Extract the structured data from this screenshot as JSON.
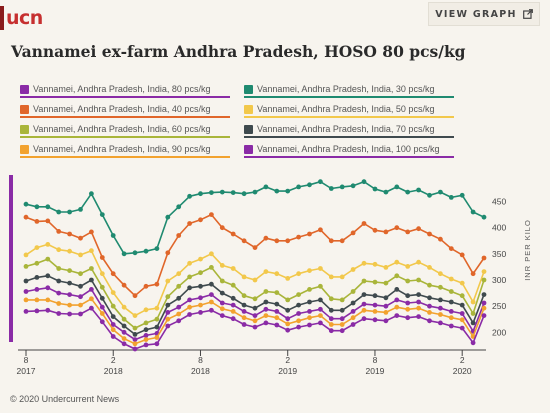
{
  "header": {
    "logo_text": "ucn",
    "view_graph_label": "VIEW GRAPH",
    "view_graph_icon": "external-link-icon"
  },
  "title": "Vannamei ex-farm Andhra Pradesh, HOSO 80 pcs/kg",
  "legend": [
    {
      "label": "Vannamei, Andhra Pradesh, India, 80 pcs/kg",
      "color": "#8a2ba6"
    },
    {
      "label": "Vannamei, Andhra Pradesh, India, 30 pcs/kg",
      "color": "#1f8a70"
    },
    {
      "label": "Vannamei, Andhra Pradesh, India, 40 pcs/kg",
      "color": "#e0662a"
    },
    {
      "label": "Vannamei, Andhra Pradesh, India, 50 pcs/kg",
      "color": "#f2c84b"
    },
    {
      "label": "Vannamei, Andhra Pradesh, India, 60 pcs/kg",
      "color": "#a9b53a"
    },
    {
      "label": "Vannamei, Andhra Pradesh, India, 70 pcs/kg",
      "color": "#3f4a4e"
    },
    {
      "label": "Vannamei, Andhra Pradesh, India, 90 pcs/kg",
      "color": "#f2a22e"
    },
    {
      "label": "Vannamei, Andhra Pradesh, India, 100 pcs/kg",
      "color": "#8a2ba6"
    }
  ],
  "chart_data": {
    "type": "line",
    "title": "Vannamei ex-farm Andhra Pradesh, HOSO 80 pcs/kg",
    "ylabel": "INR PER KILO",
    "ylim": [
      170,
      495
    ],
    "yticks": [
      200,
      250,
      300,
      350,
      400,
      450
    ],
    "y_axis_side": "right",
    "x_ticks": [
      {
        "index": 0,
        "month": "8",
        "year": "2017"
      },
      {
        "index": 8,
        "month": "2",
        "year": "2018"
      },
      {
        "index": 16,
        "month": "8",
        "year": "2018"
      },
      {
        "index": 24,
        "month": "2",
        "year": "2019"
      },
      {
        "index": 32,
        "month": "8",
        "year": "2019"
      },
      {
        "index": 40,
        "month": "2",
        "year": "2020"
      }
    ],
    "grid": false,
    "series": [
      {
        "name": "Vannamei, Andhra Pradesh, India, 30 pcs/kg",
        "color": "#1f8a70",
        "values": [
          445,
          440,
          440,
          430,
          430,
          435,
          465,
          425,
          385,
          350,
          352,
          355,
          360,
          420,
          440,
          460,
          465,
          467,
          468,
          467,
          465,
          468,
          478,
          470,
          470,
          478,
          482,
          488,
          475,
          478,
          480,
          488,
          474,
          468,
          478,
          468,
          472,
          462,
          468,
          458,
          462,
          430,
          420
        ]
      },
      {
        "name": "Vannamei, Andhra Pradesh, India, 40 pcs/kg",
        "color": "#e0662a",
        "values": [
          420,
          412,
          413,
          393,
          388,
          380,
          392,
          343,
          312,
          290,
          270,
          288,
          292,
          352,
          385,
          408,
          415,
          425,
          400,
          388,
          375,
          362,
          380,
          375,
          375,
          382,
          388,
          396,
          375,
          375,
          390,
          408,
          395,
          392,
          400,
          392,
          398,
          388,
          378,
          360,
          348,
          312,
          342
        ]
      },
      {
        "name": "Vannamei, Andhra Pradesh, India, 50 pcs/kg",
        "color": "#f2c84b",
        "values": [
          348,
          362,
          368,
          358,
          355,
          348,
          356,
          312,
          276,
          248,
          232,
          243,
          246,
          298,
          312,
          332,
          340,
          350,
          328,
          322,
          306,
          300,
          316,
          312,
          303,
          312,
          318,
          322,
          306,
          306,
          320,
          332,
          330,
          324,
          334,
          326,
          334,
          324,
          312,
          302,
          294,
          258,
          316
        ]
      },
      {
        "name": "Vannamei, Andhra Pradesh, India, 60 pcs/kg",
        "color": "#a9b53a",
        "values": [
          326,
          332,
          340,
          322,
          318,
          312,
          322,
          286,
          250,
          225,
          208,
          218,
          225,
          268,
          288,
          306,
          314,
          324,
          298,
          290,
          270,
          264,
          278,
          276,
          262,
          272,
          282,
          288,
          264,
          262,
          278,
          298,
          296,
          294,
          308,
          298,
          300,
          290,
          286,
          278,
          270,
          236,
          300
        ]
      },
      {
        "name": "Vannamei, Andhra Pradesh, India, 70 pcs/kg",
        "color": "#3f4a4e",
        "values": [
          298,
          305,
          308,
          298,
          294,
          288,
          300,
          265,
          230,
          212,
          196,
          205,
          210,
          252,
          265,
          285,
          288,
          292,
          275,
          265,
          252,
          246,
          258,
          254,
          242,
          252,
          258,
          262,
          242,
          242,
          256,
          272,
          270,
          266,
          282,
          270,
          272,
          266,
          262,
          258,
          252,
          218,
          272
        ]
      },
      {
        "name": "Vannamei, Andhra Pradesh, India, 80 pcs/kg",
        "color": "#8a2ba6",
        "values": [
          278,
          282,
          285,
          275,
          272,
          268,
          282,
          248,
          215,
          200,
          186,
          194,
          198,
          238,
          248,
          262,
          266,
          272,
          256,
          252,
          240,
          232,
          244,
          240,
          226,
          236,
          240,
          244,
          226,
          226,
          240,
          254,
          252,
          250,
          262,
          256,
          258,
          250,
          246,
          240,
          236,
          202,
          256
        ]
      },
      {
        "name": "Vannamei, Andhra Pradesh, India, 90 pcs/kg",
        "color": "#f2a22e",
        "values": [
          262,
          262,
          262,
          255,
          252,
          252,
          264,
          236,
          205,
          188,
          178,
          186,
          190,
          225,
          235,
          248,
          252,
          258,
          245,
          240,
          228,
          222,
          232,
          228,
          216,
          222,
          228,
          232,
          215,
          215,
          228,
          242,
          240,
          238,
          248,
          244,
          246,
          238,
          234,
          228,
          224,
          192,
          246
        ]
      },
      {
        "name": "Vannamei, Andhra Pradesh, India, 100 pcs/kg",
        "color": "#8a2ba6",
        "values": [
          240,
          241,
          242,
          236,
          235,
          235,
          246,
          220,
          192,
          178,
          168,
          176,
          178,
          212,
          222,
          234,
          238,
          242,
          232,
          226,
          215,
          210,
          218,
          214,
          204,
          210,
          214,
          218,
          203,
          203,
          215,
          226,
          224,
          222,
          232,
          228,
          230,
          222,
          218,
          212,
          208,
          180,
          232
        ]
      }
    ]
  },
  "footer": {
    "copyright": "© 2020 Undercurrent News"
  }
}
